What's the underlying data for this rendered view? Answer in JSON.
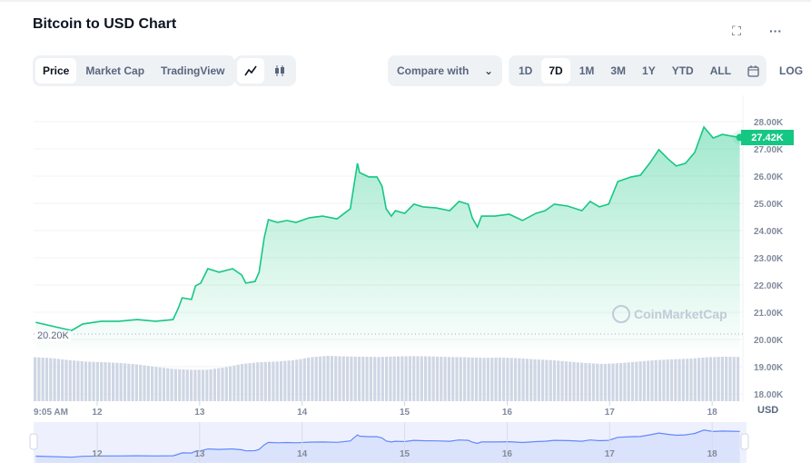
{
  "header": {
    "title": "Bitcoin to USD Chart",
    "fullscreen_icon": "expand-icon",
    "more_icon": "more-horizontal-icon"
  },
  "toolbar": {
    "view_tabs": [
      {
        "label": "Price",
        "active": true
      },
      {
        "label": "Market Cap",
        "active": false
      },
      {
        "label": "TradingView",
        "active": false
      }
    ],
    "chart_types": [
      {
        "icon": "line-chart-icon",
        "active": true
      },
      {
        "icon": "candlestick-icon",
        "active": false
      }
    ],
    "compare_label": "Compare with",
    "ranges": [
      {
        "label": "1D",
        "active": false
      },
      {
        "label": "7D",
        "active": true
      },
      {
        "label": "1M",
        "active": false
      },
      {
        "label": "3M",
        "active": false
      },
      {
        "label": "1Y",
        "active": false
      },
      {
        "label": "YTD",
        "active": false
      },
      {
        "label": "ALL",
        "active": false
      }
    ],
    "calendar_icon": "calendar-icon",
    "log_label": "LOG"
  },
  "colors": {
    "line": "#16c784",
    "badge": "#16c784",
    "volume": "#cfd6e4",
    "navigator_line": "#6188ff",
    "navigator_bg": "#eef1fd"
  },
  "chart_data": {
    "type": "area",
    "title": "Bitcoin to USD Chart",
    "ylabel": "USD",
    "ylim": [
      18000,
      28000
    ],
    "y_ticks": [
      "28.00K",
      "27.00K",
      "26.00K",
      "25.00K",
      "24.00K",
      "23.00K",
      "22.00K",
      "21.00K",
      "20.00K",
      "19.00K",
      "18.00K"
    ],
    "x_ticks": [
      {
        "label": "9:05 AM",
        "day": 11.38
      },
      {
        "label": "12",
        "day": 12
      },
      {
        "label": "13",
        "day": 13
      },
      {
        "label": "14",
        "day": 14
      },
      {
        "label": "15",
        "day": 15
      },
      {
        "label": "16",
        "day": 16
      },
      {
        "label": "17",
        "day": 17
      },
      {
        "label": "18",
        "day": 18
      }
    ],
    "xlim": [
      11.38,
      18.3
    ],
    "current_price_label": "27.42K",
    "min_price_label": "20.20K",
    "min_price": 20200,
    "unit_label": "USD",
    "watermark": "CoinMarketCap",
    "series": [
      {
        "name": "Price",
        "points": [
          [
            11.4,
            20630
          ],
          [
            11.75,
            20330
          ],
          [
            11.86,
            20570
          ],
          [
            12.04,
            20670
          ],
          [
            12.21,
            20670
          ],
          [
            12.39,
            20730
          ],
          [
            12.57,
            20670
          ],
          [
            12.74,
            20730
          ],
          [
            12.79,
            21130
          ],
          [
            12.83,
            21530
          ],
          [
            12.92,
            21470
          ],
          [
            12.96,
            21970
          ],
          [
            13.01,
            22070
          ],
          [
            13.08,
            22600
          ],
          [
            13.19,
            22470
          ],
          [
            13.32,
            22600
          ],
          [
            13.41,
            22370
          ],
          [
            13.45,
            22070
          ],
          [
            13.54,
            22130
          ],
          [
            13.58,
            22470
          ],
          [
            13.63,
            23730
          ],
          [
            13.67,
            24400
          ],
          [
            13.76,
            24300
          ],
          [
            13.85,
            24370
          ],
          [
            13.94,
            24300
          ],
          [
            14.07,
            24470
          ],
          [
            14.2,
            24530
          ],
          [
            14.34,
            24430
          ],
          [
            14.47,
            24800
          ],
          [
            14.54,
            26470
          ],
          [
            14.56,
            26130
          ],
          [
            14.65,
            25970
          ],
          [
            14.73,
            25970
          ],
          [
            14.78,
            25630
          ],
          [
            14.82,
            24800
          ],
          [
            14.87,
            24530
          ],
          [
            14.91,
            24730
          ],
          [
            15.0,
            24630
          ],
          [
            15.09,
            24970
          ],
          [
            15.18,
            24870
          ],
          [
            15.31,
            24830
          ],
          [
            15.44,
            24730
          ],
          [
            15.53,
            25070
          ],
          [
            15.62,
            24970
          ],
          [
            15.66,
            24470
          ],
          [
            15.71,
            24130
          ],
          [
            15.75,
            24530
          ],
          [
            15.88,
            24530
          ],
          [
            16.02,
            24600
          ],
          [
            16.15,
            24370
          ],
          [
            16.28,
            24630
          ],
          [
            16.37,
            24730
          ],
          [
            16.46,
            24970
          ],
          [
            16.59,
            24900
          ],
          [
            16.73,
            24730
          ],
          [
            16.81,
            25070
          ],
          [
            16.9,
            24870
          ],
          [
            16.99,
            24970
          ],
          [
            17.08,
            25800
          ],
          [
            17.21,
            25970
          ],
          [
            17.3,
            26030
          ],
          [
            17.39,
            26470
          ],
          [
            17.48,
            26970
          ],
          [
            17.57,
            26630
          ],
          [
            17.65,
            26370
          ],
          [
            17.74,
            26470
          ],
          [
            17.83,
            26870
          ],
          [
            17.92,
            27800
          ],
          [
            18.01,
            27400
          ],
          [
            18.1,
            27530
          ],
          [
            18.19,
            27470
          ],
          [
            18.27,
            27420
          ]
        ]
      }
    ],
    "volume_relative": [
      0.95,
      0.92,
      0.85,
      0.8,
      0.78,
      0.75,
      0.7,
      0.62,
      0.55,
      0.52,
      0.52,
      0.6,
      0.72,
      0.78,
      0.8,
      0.85,
      0.95,
      1.0,
      0.98,
      0.97,
      0.96,
      0.98,
      0.99,
      0.98,
      0.96,
      0.95,
      0.93,
      0.94,
      0.92,
      0.88,
      0.85,
      0.8,
      0.75,
      0.72,
      0.75,
      0.8,
      0.85,
      0.88,
      0.9,
      0.95,
      0.97,
      0.96
    ]
  }
}
